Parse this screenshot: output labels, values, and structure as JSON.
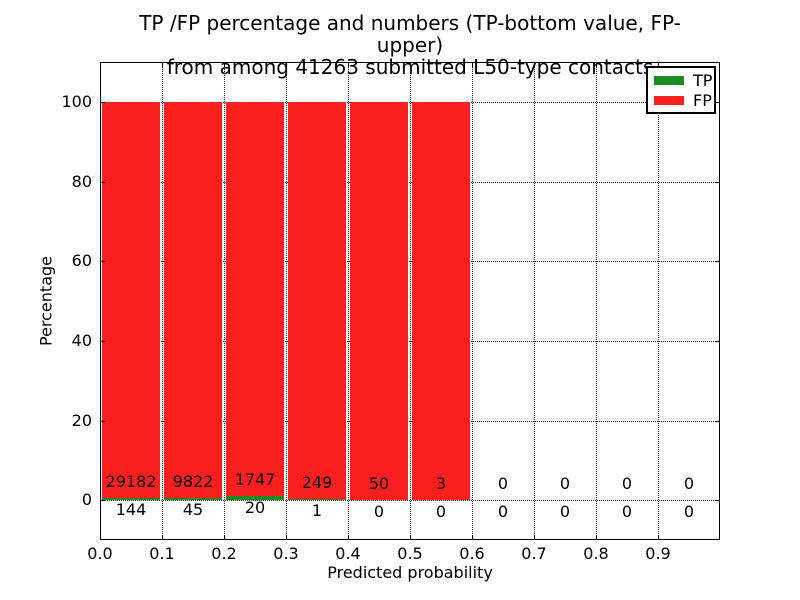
{
  "figure": {
    "title_line1": "TP /FP percentage and numbers (TP-bottom value, FP-upper)",
    "title_line2": "from among 41263 submitted L50-type contacts",
    "xlabel": "Predicted probability",
    "ylabel": "Percentage"
  },
  "legend": {
    "position": "upper right",
    "items": [
      {
        "label": "TP",
        "color": "#1f8b24"
      },
      {
        "label": "FP",
        "color": "#fa1f1f"
      }
    ]
  },
  "chart_data": {
    "type": "bar",
    "stacked": true,
    "title": "TP /FP percentage and numbers (TP-bottom value, FP-upper)\nfrom among 41263 submitted L50-type contacts",
    "xlabel": "Predicted probability",
    "ylabel": "Percentage",
    "total_submitted_contacts": 41263,
    "bin_starts": [
      0.0,
      0.1,
      0.2,
      0.3,
      0.4,
      0.5,
      0.6,
      0.7,
      0.8,
      0.9
    ],
    "bin_width": 0.1,
    "series": [
      {
        "name": "TP",
        "color": "#1f8b24",
        "counts": [
          144,
          45,
          20,
          1,
          0,
          0,
          0,
          0,
          0,
          0
        ]
      },
      {
        "name": "FP",
        "color": "#fa1f1f",
        "counts": [
          29182,
          9822,
          1747,
          249,
          50,
          3,
          0,
          0,
          0,
          0
        ]
      }
    ],
    "bars_show": "TP and FP percentage within each bin, stacked to 100%; TP count printed below zero line, FP count printed above it",
    "xticks": [
      "0.0",
      "0.1",
      "0.2",
      "0.3",
      "0.4",
      "0.5",
      "0.6",
      "0.7",
      "0.8",
      "0.9"
    ],
    "yticks": [
      "0",
      "20",
      "40",
      "60",
      "80",
      "100"
    ],
    "xlim": [
      0.0,
      1.0
    ],
    "ylim": [
      -10,
      110
    ],
    "grid": "dotted",
    "legend_position": "upper right"
  }
}
